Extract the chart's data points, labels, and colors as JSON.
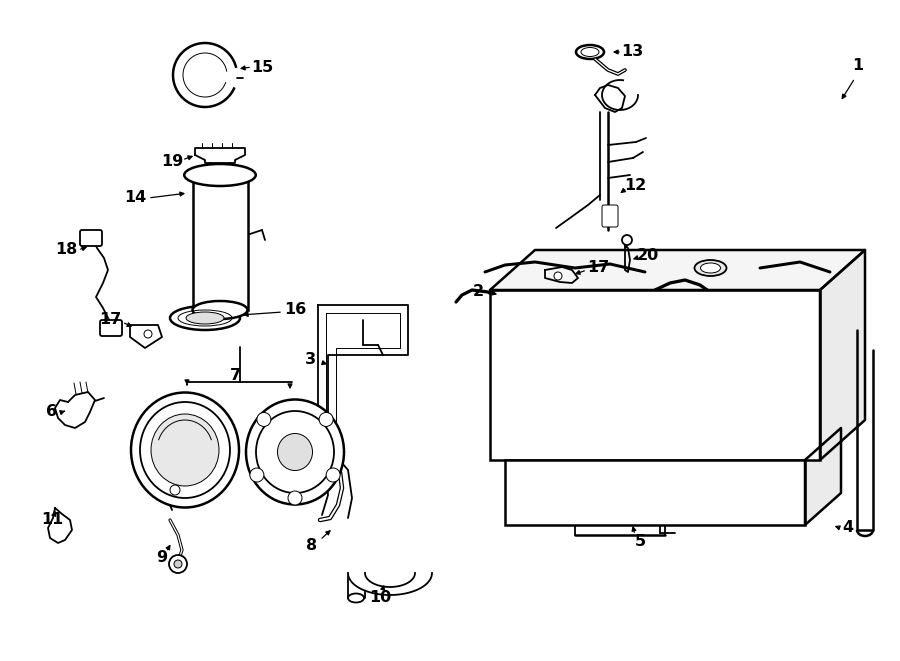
{
  "bg_color": "#ffffff",
  "line_color": "#000000",
  "figsize": [
    9.0,
    6.61
  ],
  "dpi": 100,
  "lw": 1.3,
  "lw2": 1.8,
  "lw_thin": 0.7,
  "fs": 11.5
}
